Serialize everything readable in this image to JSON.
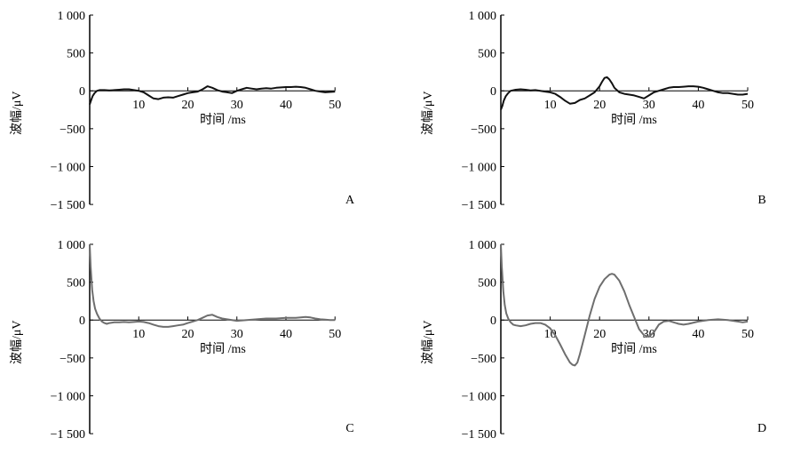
{
  "chart_data": [
    {
      "panel_label": "A",
      "type": "line",
      "xlabel": "时间 /ms",
      "ylabel": "波幅/μV",
      "xlim": [
        0,
        50
      ],
      "ylim": [
        -1500,
        1000
      ],
      "xticks": [
        10,
        20,
        30,
        40,
        50
      ],
      "xtick_labels": [
        "10",
        "20",
        "30",
        "40",
        "50"
      ],
      "yticks": [
        1000,
        500,
        0,
        -500,
        -1000,
        -1500
      ],
      "ytick_labels": [
        "1 000",
        "500",
        "0",
        "−500",
        "−1 000",
        "−1 500"
      ],
      "line_color": "#111111",
      "series": [
        {
          "x": [
            0,
            0.3,
            0.6,
            1,
            1.5,
            2,
            3,
            4,
            5,
            6,
            7,
            8,
            9,
            10,
            11,
            12,
            13,
            14,
            15,
            16,
            17,
            18,
            19,
            20,
            21,
            22,
            23,
            24,
            25,
            26,
            27,
            28,
            29,
            30,
            31,
            32,
            33,
            34,
            35,
            36,
            37,
            38,
            39,
            40,
            41,
            42,
            43,
            44,
            45,
            46,
            47,
            48,
            49,
            50
          ],
          "y": [
            -180,
            -120,
            -70,
            -30,
            0,
            10,
            10,
            5,
            10,
            15,
            20,
            20,
            10,
            0,
            -20,
            -60,
            -100,
            -110,
            -90,
            -85,
            -90,
            -70,
            -50,
            -30,
            -20,
            -10,
            20,
            60,
            40,
            10,
            -10,
            -20,
            -30,
            0,
            20,
            40,
            30,
            20,
            30,
            35,
            30,
            40,
            45,
            50,
            50,
            55,
            50,
            40,
            20,
            0,
            -10,
            -20,
            -15,
            -10
          ]
        }
      ]
    },
    {
      "panel_label": "B",
      "type": "line",
      "xlabel": "时间 /ms",
      "ylabel": "波幅/μV",
      "xlim": [
        0,
        50
      ],
      "ylim": [
        -1500,
        1000
      ],
      "xticks": [
        10,
        20,
        30,
        40,
        50
      ],
      "xtick_labels": [
        "10",
        "20",
        "30",
        "40",
        "50"
      ],
      "yticks": [
        1000,
        500,
        0,
        -500,
        -1000,
        -1500
      ],
      "ytick_labels": [
        "1 000",
        "500",
        "0",
        "−500",
        "−1 000",
        "−1 500"
      ],
      "line_color": "#111111",
      "series": [
        {
          "x": [
            0,
            0.3,
            0.6,
            1,
            1.5,
            2,
            3,
            4,
            5,
            6,
            7,
            8,
            9,
            10,
            11,
            12,
            13,
            14,
            15,
            16,
            17,
            18,
            19,
            20,
            20.5,
            21,
            21.5,
            22,
            22.5,
            23,
            24,
            25,
            26,
            27,
            28,
            29,
            30,
            31,
            32,
            33,
            34,
            35,
            36,
            37,
            38,
            39,
            40,
            41,
            42,
            43,
            44,
            45,
            46,
            47,
            48,
            49,
            50
          ],
          "y": [
            -250,
            -200,
            -130,
            -70,
            -30,
            0,
            15,
            20,
            15,
            5,
            10,
            0,
            -10,
            -20,
            -40,
            -80,
            -130,
            -170,
            -160,
            -120,
            -100,
            -60,
            -20,
            60,
            120,
            170,
            180,
            150,
            100,
            40,
            -20,
            -40,
            -50,
            -60,
            -80,
            -100,
            -60,
            -20,
            0,
            20,
            40,
            50,
            50,
            55,
            60,
            60,
            55,
            40,
            20,
            0,
            -20,
            -30,
            -30,
            -40,
            -50,
            -50,
            -40
          ]
        }
      ]
    },
    {
      "panel_label": "C",
      "type": "line",
      "xlabel": "时间 /ms",
      "ylabel": "波幅/μV",
      "xlim": [
        0,
        50
      ],
      "ylim": [
        -1500,
        1000
      ],
      "xticks": [
        10,
        20,
        30,
        40,
        50
      ],
      "xtick_labels": [
        "10",
        "20",
        "30",
        "40",
        "50"
      ],
      "yticks": [
        1000,
        500,
        0,
        -500,
        -1000,
        -1500
      ],
      "ytick_labels": [
        "1 000",
        "500",
        "0",
        "−500",
        "−1 000",
        "−1 500"
      ],
      "line_color": "#6e6e6e",
      "series": [
        {
          "x": [
            0,
            0.2,
            0.5,
            0.8,
            1.1,
            1.5,
            2,
            2.5,
            3,
            3.5,
            4,
            5,
            6,
            7,
            8,
            9,
            10,
            11,
            12,
            13,
            14,
            15,
            16,
            17,
            18,
            19,
            20,
            21,
            22,
            23,
            24,
            25,
            26,
            27,
            28,
            29,
            30,
            32,
            34,
            36,
            38,
            40,
            42,
            44,
            45,
            46,
            47,
            48,
            49,
            50
          ],
          "y": [
            1000,
            700,
            400,
            250,
            150,
            80,
            20,
            -20,
            -40,
            -50,
            -40,
            -30,
            -30,
            -25,
            -30,
            -25,
            -20,
            -25,
            -40,
            -60,
            -80,
            -90,
            -90,
            -80,
            -70,
            -60,
            -40,
            -20,
            0,
            30,
            60,
            70,
            40,
            20,
            10,
            0,
            -10,
            0,
            10,
            20,
            20,
            30,
            30,
            40,
            35,
            20,
            10,
            5,
            0,
            0
          ]
        }
      ]
    },
    {
      "panel_label": "D",
      "type": "line",
      "xlabel": "时间 /ms",
      "ylabel": "波幅/μV",
      "xlim": [
        0,
        50
      ],
      "ylim": [
        -1500,
        1000
      ],
      "xticks": [
        10,
        20,
        30,
        40,
        50
      ],
      "xtick_labels": [
        "10",
        "20",
        "30",
        "40",
        "50"
      ],
      "yticks": [
        1000,
        500,
        0,
        -500,
        -1000,
        -1500
      ],
      "ytick_labels": [
        "1 000",
        "500",
        "0",
        "−500",
        "−1 000",
        "−1 500"
      ],
      "line_color": "#6e6e6e",
      "series": [
        {
          "x": [
            0,
            0.2,
            0.5,
            0.8,
            1.1,
            1.5,
            2,
            2.5,
            3,
            4,
            5,
            6,
            7,
            8,
            9,
            10,
            11,
            12,
            13,
            14,
            14.5,
            15,
            15.5,
            16,
            17,
            18,
            19,
            20,
            21,
            22,
            22.5,
            23,
            24,
            25,
            26,
            27,
            28,
            29,
            30,
            31,
            32,
            33,
            34,
            35,
            36,
            37,
            38,
            40,
            42,
            44,
            46,
            48,
            49,
            50
          ],
          "y": [
            1000,
            700,
            380,
            200,
            90,
            20,
            -30,
            -60,
            -70,
            -80,
            -70,
            -50,
            -40,
            -40,
            -60,
            -110,
            -200,
            -320,
            -450,
            -560,
            -590,
            -600,
            -560,
            -450,
            -200,
            60,
            280,
            440,
            540,
            600,
            610,
            600,
            520,
            380,
            200,
            40,
            -120,
            -200,
            -220,
            -160,
            -60,
            -20,
            -10,
            -30,
            -50,
            -60,
            -50,
            -20,
            0,
            10,
            0,
            -20,
            -30,
            -20
          ]
        }
      ]
    }
  ]
}
